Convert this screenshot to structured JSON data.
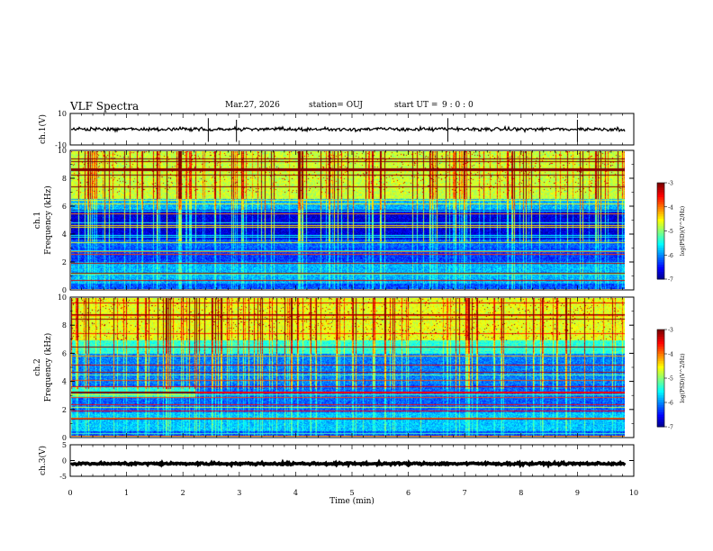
{
  "header": {
    "title": "VLF Spectra",
    "date": "Mar.27, 2026",
    "station": "station= OUJ",
    "start_label": "start  UT =",
    "start_time": "9 : 0  : 0"
  },
  "chart_data": {
    "type": "spectrogram",
    "title": "VLF Spectra",
    "xlabel": "Time (min)",
    "xlim": [
      0,
      10
    ],
    "xticks": [
      0,
      1,
      2,
      3,
      4,
      5,
      6,
      7,
      8,
      9,
      10
    ],
    "data_end_min": 9.85,
    "panels": [
      {
        "kind": "waveform",
        "ylabel": "ch.1(V)",
        "ylim": [
          -10,
          10
        ],
        "yticks": [
          10,
          -10
        ],
        "mean_level": 0,
        "noise": 1,
        "spikes_min": [
          2.45,
          2.95,
          6.7,
          9.0
        ]
      },
      {
        "kind": "spectrogram",
        "ylabel": "ch.1\nFrequency (kHz)",
        "ylim": [
          0,
          10
        ],
        "yticks": [
          0,
          2,
          4,
          6,
          8,
          10
        ],
        "colorbar": {
          "label": "log(PSD)(V^2/Hz)",
          "ticks": [
            -3,
            -4,
            -5,
            -6,
            -7
          ],
          "range": [
            -7,
            -3
          ]
        }
      },
      {
        "kind": "spectrogram",
        "ylabel": "ch.2\nFrequency (kHz)",
        "ylim": [
          0,
          10
        ],
        "yticks": [
          0,
          2,
          4,
          6,
          8,
          10
        ],
        "colorbar": {
          "label": "log(PSD)(V^2/Hz)",
          "ticks": [
            -3,
            -4,
            -5,
            -6,
            -7
          ],
          "range": [
            -7,
            -3
          ]
        }
      },
      {
        "kind": "waveform",
        "ylabel": "ch.3(V)",
        "ylim": [
          -5,
          5
        ],
        "yticks": [
          5,
          0,
          -5
        ],
        "mean_level": -1,
        "noise": 0.3
      }
    ]
  }
}
